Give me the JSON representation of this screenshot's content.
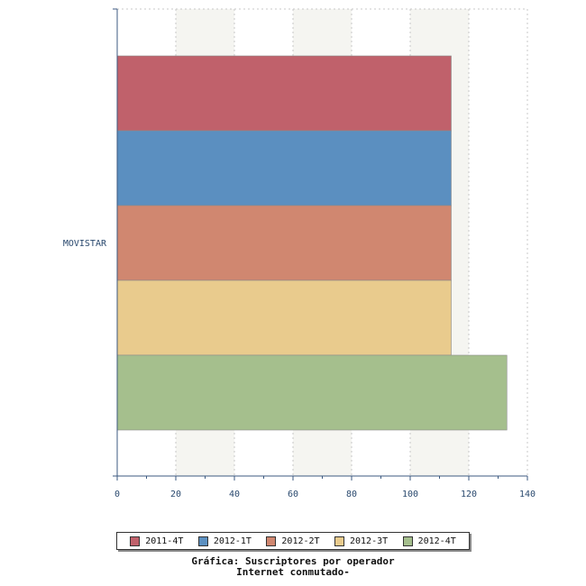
{
  "chart_data": {
    "type": "bar",
    "orientation": "horizontal",
    "categories": [
      "MOVISTAR"
    ],
    "series": [
      {
        "name": "2011-4T",
        "values": [
          114
        ],
        "color": "#c0616b"
      },
      {
        "name": "2012-1T",
        "values": [
          114
        ],
        "color": "#5b8fc0"
      },
      {
        "name": "2012-2T",
        "values": [
          114
        ],
        "color": "#d08770"
      },
      {
        "name": "2012-3T",
        "values": [
          114
        ],
        "color": "#e9cb8d"
      },
      {
        "name": "2012-4T",
        "values": [
          133
        ],
        "color": "#a5bf8d"
      }
    ],
    "xlim": [
      0,
      140
    ],
    "xticks": [
      "0",
      "20",
      "40",
      "60",
      "80",
      "100",
      "120",
      "140"
    ],
    "grid": true,
    "legend_position": "bottom"
  },
  "caption": {
    "line1": "Gráfica: Suscriptores por operador",
    "line2": "Internet conmutado-"
  }
}
